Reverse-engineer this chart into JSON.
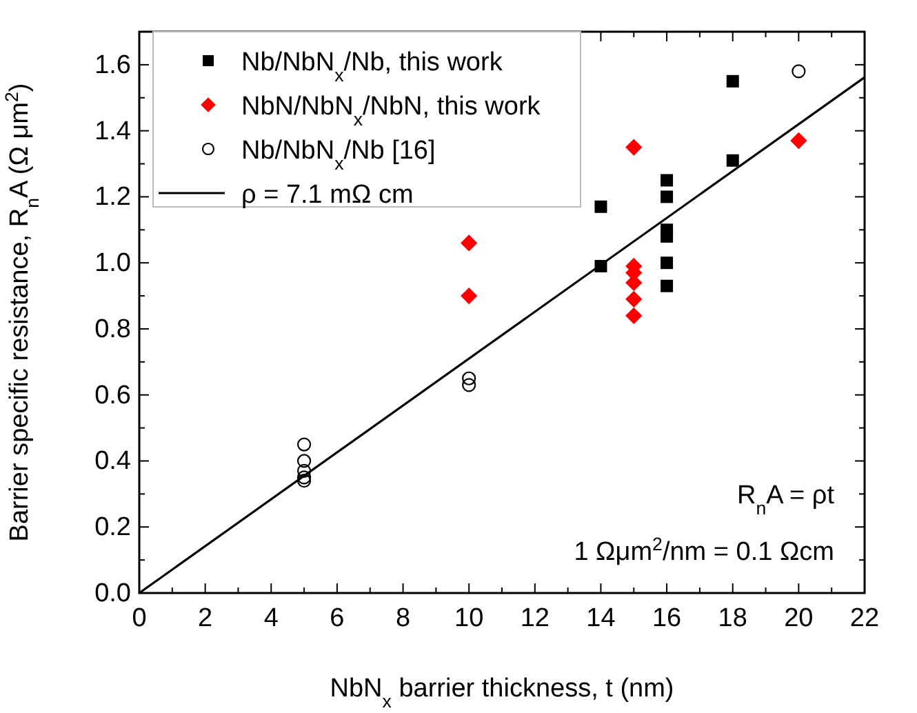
{
  "chart_data": {
    "type": "scatter",
    "xlabel": "NbN$_{x}$ barrier thickness, t (nm)",
    "ylabel": "Barrier specific resistance, R$_{n}$A (Ω μm$^{2}$)",
    "xlim": [
      0,
      22
    ],
    "xticks": [
      0,
      {
        "value": 1,
        "label": null
      },
      2,
      {
        "value": 3,
        "label": null
      },
      4,
      {
        "value": 5,
        "label": null
      },
      6,
      {
        "value": 7,
        "label": null
      },
      8,
      {
        "value": 9,
        "label": null
      },
      10,
      {
        "value": 11,
        "label": null
      },
      12,
      {
        "value": 13,
        "label": null
      },
      14,
      {
        "value": 15,
        "label": null
      },
      16,
      {
        "value": 17,
        "label": null
      },
      18,
      {
        "value": 19,
        "label": null
      },
      20,
      {
        "value": 21,
        "label": null
      },
      22
    ],
    "ylim": [
      0,
      1.7
    ],
    "yticks": [
      {
        "value": 0,
        "label": "0.0"
      },
      {
        "value": 0.1,
        "label": null
      },
      {
        "value": 0.2,
        "label": "0.2"
      },
      {
        "value": 0.3,
        "label": null
      },
      {
        "value": 0.4,
        "label": "0.4"
      },
      {
        "value": 0.5,
        "label": null
      },
      {
        "value": 0.6,
        "label": "0.6"
      },
      {
        "value": 0.7,
        "label": null
      },
      {
        "value": 0.8,
        "label": "0.8"
      },
      {
        "value": 0.9,
        "label": null
      },
      {
        "value": 1.0,
        "label": "1.0"
      },
      {
        "value": 1.1,
        "label": null
      },
      {
        "value": 1.2,
        "label": "1.2"
      },
      {
        "value": 1.3,
        "label": null
      },
      {
        "value": 1.4,
        "label": "1.4"
      },
      {
        "value": 1.5,
        "label": null
      },
      {
        "value": 1.6,
        "label": "1.6"
      },
      {
        "value": 1.7,
        "label": null
      }
    ],
    "legend": "top left",
    "annotations": [
      "R$_{n}$A = ρt",
      "1 Ωμm$^{2}$/nm = 0.1 Ωcm"
    ],
    "series": [
      {
        "name": "Nb/NbN$_{x}$/Nb, this work",
        "marker": "square",
        "color": "#000000",
        "x": [
          14,
          14,
          16,
          16,
          16,
          16,
          16,
          16,
          18,
          18
        ],
        "values": [
          1.17,
          0.99,
          1.25,
          1.2,
          1.1,
          1.08,
          1.0,
          0.93,
          1.55,
          1.31
        ]
      },
      {
        "name": "NbN/NbN$_{x}$/NbN, this work",
        "marker": "diamond",
        "color": "#ff0000",
        "x": [
          10,
          10,
          15,
          15,
          15,
          15,
          15,
          15,
          20
        ],
        "values": [
          1.06,
          0.9,
          1.35,
          0.99,
          0.97,
          0.94,
          0.89,
          0.84,
          1.37
        ]
      },
      {
        "name": "Nb/NbN$_{x}$/Nb [16]",
        "marker": "circle",
        "color": "#000000",
        "x": [
          5,
          5,
          5,
          5,
          5,
          10,
          10,
          20
        ],
        "values": [
          0.45,
          0.4,
          0.37,
          0.35,
          0.34,
          0.65,
          0.63,
          1.58
        ]
      },
      {
        "name": "ρ = 7.1 mΩ cm",
        "type": "line",
        "marker": "none",
        "line_style": "solid",
        "color": "#000000",
        "x": [
          0,
          22
        ],
        "values": [
          0,
          1.562
        ]
      }
    ]
  }
}
